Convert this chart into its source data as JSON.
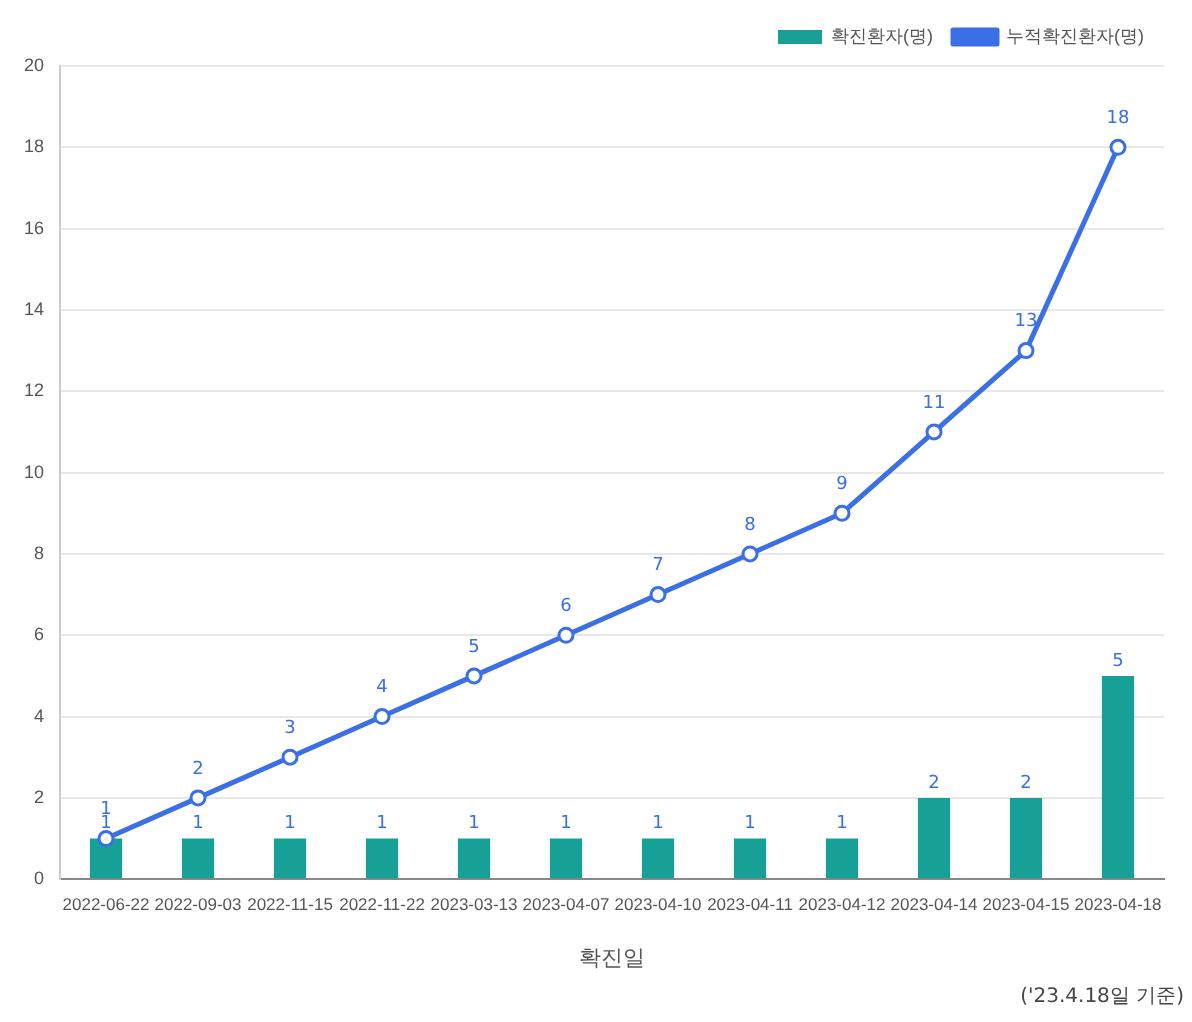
{
  "chart_data": {
    "type": "bar",
    "xlabel": "확진일",
    "annotations": [
      "('23.4.18일 기준)"
    ],
    "categories": [
      "2022-06-22",
      "2022-09-03",
      "2022-11-15",
      "2022-11-22",
      "2023-03-13",
      "2023-04-07",
      "2023-04-10",
      "2023-04-11",
      "2023-04-12",
      "2023-04-14",
      "2023-04-15",
      "2023-04-18"
    ],
    "series": [
      {
        "name": "확진환자(명)",
        "color": "#16a096",
        "values": [
          1,
          1,
          1,
          1,
          1,
          1,
          1,
          1,
          1,
          2,
          2,
          5
        ]
      },
      {
        "name": "누적확진환자(명)",
        "type": "line",
        "color": "#3b6fe6",
        "values": [
          1,
          2,
          3,
          4,
          5,
          6,
          7,
          8,
          9,
          11,
          13,
          18
        ]
      }
    ],
    "ylim": [
      0,
      20
    ],
    "yticks": [
      0,
      2,
      4,
      6,
      8,
      10,
      12,
      14,
      16,
      18,
      20
    ],
    "grid": "y",
    "legend": "top right",
    "marker": "circle",
    "line_style": "solid",
    "data_labels": true
  }
}
